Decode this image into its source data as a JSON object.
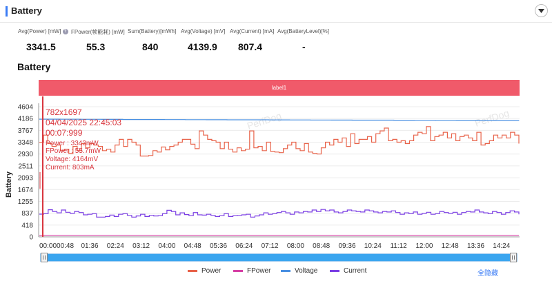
{
  "header": {
    "title": "Battery"
  },
  "metrics": [
    {
      "label": "Avg(Power) [mW]",
      "value": "3341.5",
      "has_help": true
    },
    {
      "label": "FPower(帧能耗) [mW]",
      "value": "55.3"
    },
    {
      "label": "Sum(Battery)[mWh]",
      "value": "840"
    },
    {
      "label": "Avg(Voltage) [mV]",
      "value": "4139.9"
    },
    {
      "label": "Avg(Current) [mA]",
      "value": "807.4"
    },
    {
      "label": "Avg(BatteryLevel)[%]",
      "value": "-"
    }
  ],
  "section_title": "Battery",
  "label_band": "label1",
  "chart_data": {
    "type": "line",
    "ylabel": "Battery",
    "ylim": [
      0,
      4604
    ],
    "y_ticks": [
      0,
      418,
      837,
      1255,
      1674,
      2093,
      2511,
      2930,
      3348,
      3767,
      4186,
      4604
    ],
    "x_ticks": [
      "00:00",
      "00:48",
      "01:36",
      "02:24",
      "03:12",
      "04:00",
      "04:48",
      "05:36",
      "06:24",
      "07:12",
      "08:00",
      "08:48",
      "09:36",
      "10:24",
      "11:12",
      "12:00",
      "12:48",
      "13:36",
      "14:24"
    ],
    "watermark": "PerfDog",
    "colors": {
      "Power": "#e8634a",
      "FPower": "#d63fa5",
      "Voltage": "#4a90e2",
      "Current": "#7b3fe4",
      "cursor": "#d9363e",
      "tooltip": "#d9363e"
    },
    "series": [
      {
        "name": "Power",
        "values": [
          3343,
          3600,
          3300,
          3200,
          3250,
          3050,
          3100,
          2950,
          3200,
          3050,
          3300,
          3150,
          3300,
          3250,
          3200,
          3050,
          3100,
          3000,
          3250,
          3450,
          3200,
          3450,
          3350,
          3250,
          2860,
          2860,
          2880,
          3050,
          3000,
          3180,
          3080,
          3200,
          3250,
          3350,
          3450,
          3450,
          3280,
          3120,
          3750,
          3600,
          3450,
          3400,
          3350,
          3120,
          3350,
          3100,
          3000,
          3150,
          3050,
          3100,
          3750,
          3150,
          3200,
          3050,
          3350,
          3020,
          3000,
          2980,
          3120,
          3250,
          3350,
          3120,
          3050,
          3300,
          3000,
          2950,
          2930,
          3150,
          3350,
          3250,
          3450,
          3350,
          3500,
          3200,
          3650,
          3300,
          3450,
          3450,
          3550,
          3350,
          3650,
          3750,
          3850,
          3400,
          3450,
          3350,
          3400,
          3300,
          3400,
          3600,
          3700,
          3650,
          3900,
          3400,
          3550,
          3600,
          3700,
          3500,
          3650,
          3400,
          3550,
          3600,
          3500,
          3400,
          3700,
          3250,
          3300,
          3400,
          3600,
          3500,
          3600,
          3500,
          3700,
          3600,
          3300
        ]
      },
      {
        "name": "FPower",
        "values": [
          56,
          56,
          55,
          56,
          56,
          55,
          56,
          55,
          56,
          56,
          55,
          56,
          55,
          56,
          56,
          55,
          56,
          55,
          56,
          56,
          55,
          56,
          55,
          56
        ]
      },
      {
        "name": "Voltage",
        "values": [
          4164,
          4160,
          4158,
          4155,
          4152,
          4150,
          4148,
          4146,
          4144,
          4142,
          4140,
          4138,
          4136,
          4134,
          4132,
          4130,
          4128,
          4126,
          4124,
          4122,
          4120,
          4118,
          4116,
          4114
        ]
      },
      {
        "name": "Current",
        "values": [
          803,
          820,
          960,
          900,
          850,
          950,
          870,
          830,
          900,
          860,
          780,
          800,
          820,
          700,
          700,
          720,
          770,
          720,
          800,
          820,
          760,
          700,
          740,
          800,
          720,
          760,
          740,
          750,
          820,
          940,
          900,
          780,
          850,
          790,
          750,
          860,
          780,
          770,
          800,
          760,
          720,
          750,
          820,
          720,
          750,
          760,
          780,
          800,
          700,
          740,
          780,
          850,
          800,
          820,
          860,
          900,
          850,
          800,
          880,
          850,
          900,
          880,
          950,
          900,
          970,
          920,
          950,
          880,
          850,
          900,
          950,
          920,
          900,
          880,
          950,
          920,
          880,
          850,
          900,
          880,
          920,
          860,
          800,
          850,
          820,
          880,
          800,
          830,
          870,
          800,
          820,
          900,
          860,
          830,
          870,
          800,
          860,
          900,
          880,
          950,
          880,
          850,
          820,
          900,
          860,
          800,
          860,
          920,
          880,
          800
        ]
      }
    ],
    "tooltip": {
      "lines": [
        "782x1697",
        "04/04/2025 22:45:03",
        "00:07:999",
        "Power : 3343mW",
        "FPower : 55.7mW",
        "Voltage: 4164mV",
        "Current: 803mA"
      ]
    }
  },
  "legend": [
    {
      "name": "Power",
      "color": "#e8634a"
    },
    {
      "name": "FPower",
      "color": "#d63fa5"
    },
    {
      "name": "Voltage",
      "color": "#4a90e2"
    },
    {
      "name": "Current",
      "color": "#7b3fe4"
    }
  ],
  "hide_all_label": "全隐藏"
}
